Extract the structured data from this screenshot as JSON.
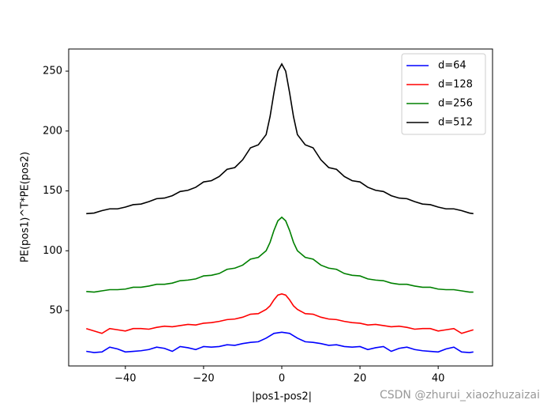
{
  "chart_data": {
    "type": "line",
    "xlabel": "|pos1-pos2|",
    "ylabel": "PE(pos1)^T*PE(pos2)",
    "watermark": "CSDN @zhurui_xiaozhuzaizai",
    "legend": "upper right",
    "xlim": [
      -54.5,
      53.9
    ],
    "ylim": [
      3.8,
      268.5
    ],
    "xticks": [
      {
        "value": -40,
        "label": "−40"
      },
      {
        "value": -20,
        "label": "−20"
      },
      0,
      20,
      40
    ],
    "yticks": [
      50,
      100,
      150,
      200,
      250
    ],
    "x": [
      -50,
      -48,
      -46,
      -44,
      -42,
      -40,
      -38,
      -36,
      -34,
      -32,
      -30,
      -28,
      -26,
      -24,
      -22,
      -20,
      -18,
      -16,
      -14,
      -12,
      -10,
      -8,
      -6,
      -4,
      -3,
      -2,
      -1,
      0,
      1,
      2,
      3,
      4,
      6,
      8,
      10,
      12,
      14,
      16,
      18,
      20,
      22,
      24,
      26,
      28,
      30,
      32,
      34,
      36,
      38,
      40,
      42,
      44,
      46,
      48,
      49
    ],
    "series": [
      {
        "name": "d=64",
        "color": "#0000ff",
        "values": [
          16,
          15,
          15.5,
          19.5,
          18,
          15.5,
          16,
          16.5,
          17.5,
          19.5,
          18.5,
          16,
          20,
          19,
          17.5,
          20,
          19.5,
          20,
          21.5,
          21,
          22.5,
          23.5,
          24,
          27,
          29,
          31,
          31.5,
          32,
          31.5,
          31,
          29,
          27,
          24,
          23.5,
          22.5,
          21,
          21.5,
          20,
          19.5,
          20,
          17.5,
          19,
          20,
          16,
          18.5,
          19.5,
          17.5,
          16.5,
          16,
          15.5,
          18,
          19.5,
          15.5,
          15,
          15.5
        ]
      },
      {
        "name": "d=128",
        "color": "#ff0000",
        "values": [
          35,
          33,
          31,
          35,
          34,
          33,
          35,
          35,
          34.5,
          36,
          37,
          36.5,
          37.5,
          38.5,
          38,
          39.5,
          40,
          41,
          42.5,
          43,
          44.5,
          47,
          47.5,
          51,
          54,
          59,
          63,
          64,
          63,
          59,
          54,
          51,
          47.5,
          47,
          44.5,
          43,
          42.5,
          41,
          40,
          39.5,
          38,
          38.5,
          37.5,
          36.5,
          37,
          36,
          34.5,
          35,
          35,
          33,
          34,
          35,
          31,
          33,
          34
        ]
      },
      {
        "name": "d=256",
        "color": "#008000",
        "values": [
          66,
          65.5,
          66.5,
          67.5,
          67.5,
          68,
          69.5,
          69.5,
          70.5,
          72,
          72,
          73,
          75,
          75.5,
          76.5,
          79,
          79.5,
          81,
          84.5,
          85.5,
          88,
          93,
          94.5,
          100,
          107,
          117,
          125,
          128,
          125,
          117,
          107,
          100,
          94.5,
          93,
          88,
          85.5,
          84.5,
          81,
          79.5,
          79,
          76.5,
          75.5,
          75,
          73,
          72,
          72,
          70.5,
          69.5,
          69.5,
          68,
          67.5,
          67.5,
          66.5,
          65.5,
          65.5
        ]
      },
      {
        "name": "d=512",
        "color": "#000000",
        "values": [
          131,
          131.5,
          133.5,
          135,
          135,
          136.5,
          138.5,
          139,
          141,
          143.5,
          144,
          146,
          149.5,
          150.5,
          153,
          157.5,
          158.5,
          162,
          168,
          169.5,
          176,
          186,
          188.5,
          197,
          212,
          232,
          250,
          256,
          250,
          232,
          212,
          197,
          188.5,
          186,
          176,
          169.5,
          168,
          162,
          158.5,
          157.5,
          153,
          150.5,
          149.5,
          146,
          144,
          143.5,
          141,
          139,
          138.5,
          136.5,
          135,
          135,
          133.5,
          131.5,
          131
        ]
      }
    ]
  }
}
